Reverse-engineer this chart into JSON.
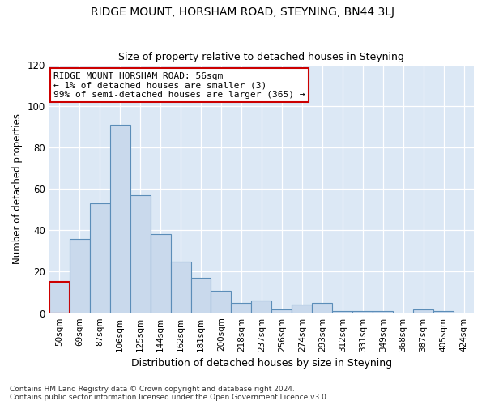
{
  "title": "RIDGE MOUNT, HORSHAM ROAD, STEYNING, BN44 3LJ",
  "subtitle": "Size of property relative to detached houses in Steyning",
  "xlabel": "Distribution of detached houses by size in Steyning",
  "ylabel": "Number of detached properties",
  "bin_labels": [
    "50sqm",
    "69sqm",
    "87sqm",
    "106sqm",
    "125sqm",
    "144sqm",
    "162sqm",
    "181sqm",
    "200sqm",
    "218sqm",
    "237sqm",
    "256sqm",
    "274sqm",
    "293sqm",
    "312sqm",
    "331sqm",
    "349sqm",
    "368sqm",
    "387sqm",
    "405sqm",
    "424sqm"
  ],
  "bar_heights": [
    15,
    36,
    53,
    91,
    57,
    38,
    25,
    17,
    11,
    5,
    6,
    2,
    4,
    5,
    1,
    1,
    1,
    0,
    2,
    1,
    0
  ],
  "bar_color": "#c9d9ec",
  "bar_edge_color": "#5b8db8",
  "highlight_bar_index": 0,
  "highlight_edge_color": "#cc0000",
  "annotation_text": "RIDGE MOUNT HORSHAM ROAD: 56sqm\n← 1% of detached houses are smaller (3)\n99% of semi-detached houses are larger (365) →",
  "annotation_box_color": "#ffffff",
  "annotation_box_edge_color": "#cc0000",
  "ylim": [
    0,
    120
  ],
  "yticks": [
    0,
    20,
    40,
    60,
    80,
    100,
    120
  ],
  "plot_bg_color": "#dce8f5",
  "fig_bg_color": "#ffffff",
  "grid_color": "#ffffff",
  "footer_line1": "Contains HM Land Registry data © Crown copyright and database right 2024.",
  "footer_line2": "Contains public sector information licensed under the Open Government Licence v3.0."
}
